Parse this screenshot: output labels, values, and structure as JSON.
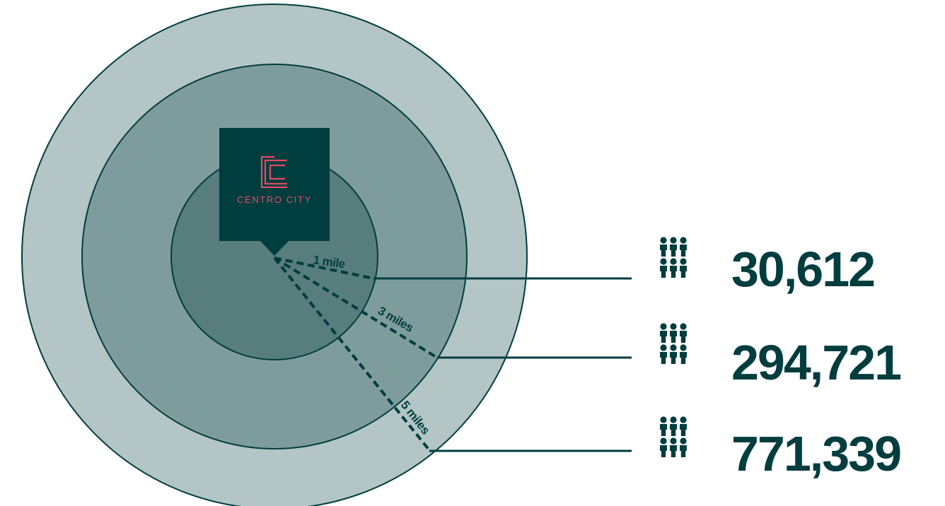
{
  "brand": {
    "name": "CENTRO CITY"
  },
  "rings": [
    {
      "label": "1 mile",
      "population": "30,612"
    },
    {
      "label": "3 miles",
      "population": "294,721"
    },
    {
      "label": "5 miles",
      "population": "771,339"
    }
  ],
  "colors": {
    "outer_ring": "#b3c5c4",
    "middle_ring": "#7f9c9c",
    "inner_ring": "#577d7c",
    "dark": "#003d3f",
    "brand_accent": "#e04d63"
  },
  "icons": {
    "population": "people-group-icon",
    "logo": "centro-city-logo-icon"
  }
}
